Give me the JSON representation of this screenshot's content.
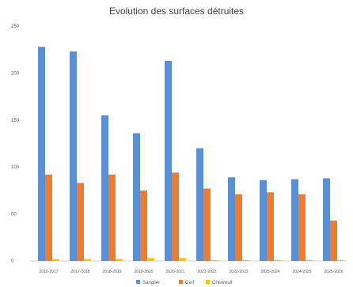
{
  "chart_data": {
    "type": "bar",
    "title": "Evolution des surfaces détruites",
    "xlabel": "",
    "ylabel": "",
    "ylim": [
      0,
      250
    ],
    "yticks": [
      0,
      50,
      100,
      150,
      200,
      250
    ],
    "grid": false,
    "legend_position": "bottom",
    "categories": [
      "2016-2017",
      "2017-2018",
      "2018-2019",
      "2019-2020",
      "2020-2021",
      "2021-2022",
      "2022-2023",
      "2023-2024",
      "2024-2025",
      "2025-2026"
    ],
    "series": [
      {
        "name": "Sanglier",
        "color": "#5b8fd1",
        "values": [
          228,
          223,
          155,
          136,
          213,
          120,
          89,
          86,
          87,
          88
        ]
      },
      {
        "name": "Cerf",
        "color": "#ed7d31",
        "values": [
          92,
          83,
          92,
          75,
          94,
          77,
          71,
          73,
          71,
          43
        ]
      },
      {
        "name": "Chevreuil",
        "color": "#ffc000",
        "values": [
          2,
          2,
          2,
          3,
          3,
          1,
          1,
          1,
          1,
          1
        ]
      }
    ]
  }
}
